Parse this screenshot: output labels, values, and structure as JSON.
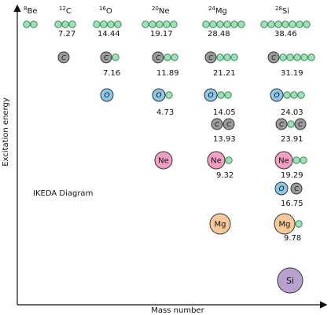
{
  "diagram": {
    "title": "IKEDA Diagram",
    "x_axis_label": "Mass number",
    "y_axis_label": "Excitation energy",
    "colors": {
      "alpha": "#9fe0b8",
      "alpha_stroke": "#3a8a5a",
      "C": "#9a9a9a",
      "O": "#8cc8ec",
      "Ne": "#f3a0c4",
      "Mg": "#f6c89a",
      "Si": "#b8a0d0",
      "stroke": "#333333"
    },
    "nuclei": [
      {
        "mass": "8",
        "symbol": "Be"
      },
      {
        "mass": "12",
        "symbol": "C"
      },
      {
        "mass": "16",
        "symbol": "O"
      },
      {
        "mass": "20",
        "symbol": "Ne"
      },
      {
        "mass": "24",
        "symbol": "Mg"
      },
      {
        "mass": "28",
        "symbol": "Si"
      }
    ],
    "values": {
      "C12_alpha": "7.27",
      "O16_alpha": "14.44",
      "O16_C": "7.16",
      "Ne20_alpha": "19.17",
      "Ne20_C": "11.89",
      "Ne20_O": "4.73",
      "Mg24_alpha": "28.48",
      "Mg24_C": "21.21",
      "Mg24_O": "14.05",
      "Mg24_CC": "13.93",
      "Mg24_Ne": "9.32",
      "Si28_alpha": "38.46",
      "Si28_C": "31.19",
      "Si28_O": "24.03",
      "Si28_CC": "23.91",
      "Si28_Ne": "19.29",
      "Si28_OC": "16.75",
      "Si28_Mg": "9.78"
    },
    "cluster_letters": {
      "C": "C",
      "O": "O",
      "Ne": "Ne",
      "Mg": "Mg",
      "Si": "Si"
    }
  }
}
